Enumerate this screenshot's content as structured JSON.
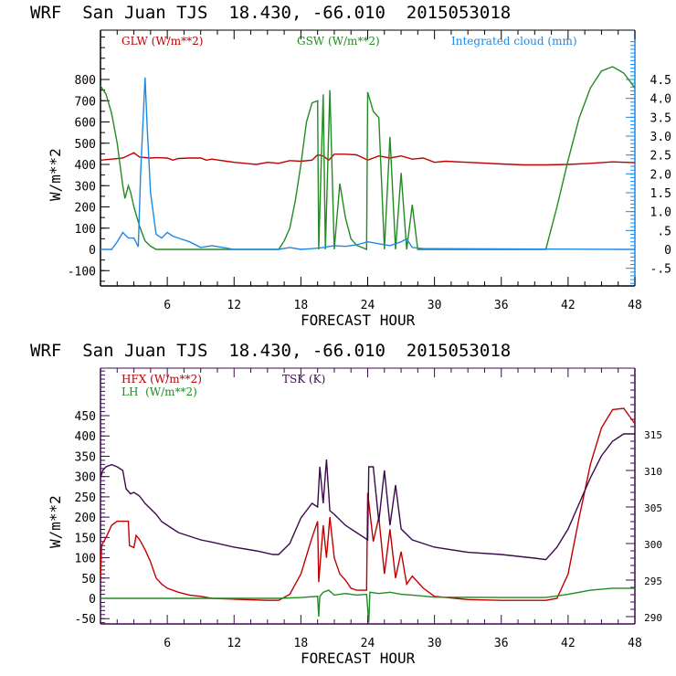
{
  "chart_data": [
    {
      "type": "line",
      "title": "WRF  San Juan TJS  18.430, -66.010  2015053018",
      "xlabel": "FORECAST HOUR",
      "ylabel": "W/m**2",
      "xlim": [
        0,
        48
      ],
      "ylim": [
        -160,
        950
      ],
      "y2lim": [
        -0.9,
        5.3
      ],
      "x_ticks": [
        "6",
        "12",
        "18",
        "24",
        "30",
        "36",
        "42",
        "48"
      ],
      "y_ticks": [
        "-100",
        "0",
        "100",
        "200",
        "300",
        "400",
        "500",
        "600",
        "700",
        "800"
      ],
      "y2_ticks": [
        "-.5",
        "0",
        ".5",
        "1.0",
        "1.5",
        "2.0",
        "2.5",
        "3.0",
        "3.5",
        "4.0",
        "4.5"
      ],
      "grid": false,
      "legend": [
        {
          "label": "GLW (W/m**2)",
          "color": "#c00000",
          "position": "top-left"
        },
        {
          "label": "GSW (W/m**2)",
          "color": "#228b22",
          "position": "top-center"
        },
        {
          "label": "Integrated cloud (mm)",
          "color": "#1e88e5",
          "position": "top-right"
        }
      ],
      "series": [
        {
          "name": "GLW (W/m**2)",
          "axis": "left",
          "color": "#c00000",
          "x": [
            0,
            1,
            2,
            3,
            3.5,
            4.5,
            5,
            6,
            6.5,
            7,
            8,
            9,
            9.5,
            10,
            12,
            13,
            14,
            15,
            16,
            17,
            18,
            19,
            19.5,
            20,
            20.5,
            21,
            22,
            23,
            24,
            25,
            26,
            27,
            28,
            29,
            30,
            31,
            33,
            36,
            38,
            40,
            42,
            44,
            46,
            48
          ],
          "y": [
            420,
            425,
            430,
            455,
            435,
            430,
            432,
            430,
            420,
            428,
            430,
            430,
            420,
            425,
            410,
            405,
            400,
            410,
            405,
            418,
            415,
            420,
            445,
            440,
            420,
            448,
            448,
            445,
            420,
            440,
            430,
            440,
            425,
            430,
            410,
            415,
            410,
            402,
            398,
            398,
            400,
            405,
            412,
            408
          ]
        },
        {
          "name": "GSW (W/m**2)",
          "axis": "left",
          "color": "#228b22",
          "x": [
            0,
            0.5,
            1,
            1.5,
            2,
            2.2,
            2.5,
            2.7,
            3,
            3.5,
            4,
            4.5,
            5,
            5.5,
            6,
            16,
            16.5,
            17,
            17.5,
            18,
            18.5,
            19,
            19.5,
            19.6,
            20,
            20.2,
            20.6,
            21,
            21.5,
            22,
            22.5,
            23,
            23.9,
            24,
            24.5,
            25,
            25.5,
            26,
            26.5,
            27,
            27.5,
            28,
            28.5,
            30,
            40,
            41,
            42,
            43,
            44,
            45,
            46,
            47,
            48
          ],
          "y": [
            770,
            730,
            640,
            500,
            300,
            240,
            300,
            270,
            200,
            110,
            40,
            15,
            0,
            0,
            0,
            0,
            40,
            100,
            230,
            400,
            600,
            690,
            700,
            0,
            730,
            0,
            750,
            0,
            310,
            150,
            50,
            20,
            0,
            740,
            650,
            620,
            0,
            530,
            0,
            360,
            0,
            210,
            0,
            0,
            0,
            200,
            420,
            620,
            760,
            840,
            860,
            830,
            760
          ]
        },
        {
          "name": "Integrated cloud (mm)",
          "axis": "right",
          "color": "#1e88e5",
          "x": [
            0,
            1,
            1.5,
            2,
            2.5,
            3,
            3.4,
            3.6,
            4,
            4.2,
            4.5,
            5,
            5.5,
            6,
            6.5,
            7,
            8,
            9,
            10,
            11,
            12,
            16,
            17,
            18,
            19,
            20,
            21,
            22,
            23,
            24,
            25,
            26,
            27,
            27.5,
            28,
            29,
            30,
            48
          ],
          "y": [
            0,
            0,
            0.2,
            0.45,
            0.3,
            0.3,
            0.07,
            2.0,
            4.55,
            3.2,
            1.5,
            0.4,
            0.3,
            0.45,
            0.35,
            0.3,
            0.2,
            0.05,
            0.1,
            0.05,
            0,
            0,
            0.05,
            0,
            0.02,
            0.05,
            0.1,
            0.08,
            0.12,
            0.2,
            0.15,
            0.1,
            0.2,
            0.28,
            0.05,
            0.02,
            0.02,
            0
          ]
        }
      ]
    },
    {
      "type": "line",
      "title": "WRF  San Juan TJS  18.430, -66.010  2015053018",
      "xlabel": "FORECAST HOUR",
      "ylabel": "W/m**2",
      "xlim": [
        0,
        48
      ],
      "ylim": [
        -60,
        570
      ],
      "y2lim": [
        289.5,
        324.5
      ],
      "x_ticks": [
        "6",
        "12",
        "18",
        "24",
        "30",
        "36",
        "42",
        "48"
      ],
      "y_ticks": [
        "-50",
        "0",
        "50",
        "100",
        "150",
        "200",
        "250",
        "300",
        "350",
        "400",
        "450"
      ],
      "y2_ticks": [
        "290",
        "295",
        "300",
        "305",
        "310",
        "315"
      ],
      "grid": false,
      "legend": [
        {
          "label": "HFX (W/m**2)",
          "color": "#c00000",
          "position": "top-left"
        },
        {
          "label": "LH  (W/m**2)",
          "color": "#228b22",
          "position": "top-left"
        },
        {
          "label": "TSK (K)",
          "color": "#3c0a4b",
          "position": "top-center"
        }
      ],
      "series": [
        {
          "name": "HFX (W/m**2)",
          "axis": "left",
          "color": "#c00000",
          "x": [
            0,
            0.1,
            0.5,
            1,
            1.5,
            2.5,
            2.6,
            3,
            3.2,
            3.5,
            4,
            4.5,
            5,
            5.5,
            6,
            7,
            8,
            9,
            10,
            12,
            15,
            16,
            17,
            18,
            19,
            19.5,
            19.6,
            20,
            20.3,
            20.6,
            21,
            21.5,
            22,
            22.5,
            23,
            23.9,
            24,
            24.5,
            25,
            25.5,
            26,
            26.5,
            27,
            27.5,
            28,
            29,
            30,
            33,
            36,
            39,
            40,
            41,
            42,
            43,
            44,
            45,
            46,
            47,
            48
          ],
          "y": [
            50,
            130,
            150,
            180,
            190,
            190,
            130,
            125,
            155,
            145,
            120,
            90,
            50,
            35,
            25,
            15,
            8,
            5,
            0,
            -2,
            -5,
            -5,
            10,
            60,
            150,
            190,
            40,
            180,
            100,
            200,
            100,
            60,
            45,
            25,
            20,
            20,
            260,
            140,
            200,
            60,
            170,
            50,
            115,
            35,
            55,
            25,
            5,
            -3,
            -5,
            -5,
            -5,
            0,
            60,
            200,
            330,
            420,
            465,
            468,
            430
          ]
        },
        {
          "name": "LH (W/m**2)",
          "axis": "left",
          "color": "#228b22",
          "x": [
            0,
            16,
            18,
            19.5,
            19.6,
            19.7,
            20,
            20.5,
            21,
            22,
            23,
            23.9,
            24.1,
            24.2,
            25,
            26,
            27,
            28,
            30,
            36,
            40,
            42,
            44,
            46,
            48
          ],
          "y": [
            0,
            0,
            2,
            5,
            -45,
            5,
            15,
            20,
            8,
            12,
            8,
            10,
            -60,
            15,
            12,
            15,
            10,
            8,
            3,
            2,
            2,
            10,
            20,
            25,
            25
          ],
          "note": "visible spikes near hours 19.6 and 24.1"
        },
        {
          "name": "TSK (K)",
          "axis": "right",
          "color": "#3c0a4b",
          "x": [
            0,
            0.2,
            0.5,
            1,
            1.5,
            2,
            2.3,
            2.7,
            3,
            3.5,
            4,
            5,
            5.5,
            6,
            7,
            8,
            9,
            10,
            12,
            14,
            15.5,
            16,
            17,
            18,
            19,
            19.5,
            19.7,
            20,
            20.3,
            20.6,
            21,
            22,
            23,
            24,
            24.1,
            24.5,
            25,
            25.5,
            26,
            26.5,
            27,
            28,
            30,
            33,
            36,
            39,
            40,
            41,
            42,
            43,
            44,
            45,
            46,
            47,
            48
          ],
          "y": [
            309,
            310,
            310.5,
            310.8,
            310.5,
            310,
            307.5,
            306.8,
            307,
            306.5,
            305.5,
            304,
            303,
            302.5,
            301.5,
            301,
            300.5,
            300.2,
            299.5,
            299,
            298.5,
            298.5,
            300,
            303.5,
            305.5,
            305,
            310.5,
            305.5,
            311.5,
            304.5,
            304,
            302.5,
            301.5,
            300.5,
            310.5,
            310.5,
            303,
            310,
            302.5,
            308,
            302,
            300.5,
            299.5,
            298.8,
            298.5,
            298,
            297.8,
            299.5,
            302,
            305.5,
            309,
            312,
            314,
            315,
            315
          ]
        }
      ]
    }
  ],
  "charts": [
    {
      "title": "WRF  San Juan TJS  18.430, -66.010  2015053018",
      "ylabel": "W/m**2",
      "xlabel": "FORECAST HOUR",
      "legend_labels": [
        "GLW (W/m**2)",
        "GSW (W/m**2)",
        "Integrated cloud (mm)"
      ]
    },
    {
      "title": "WRF  San Juan TJS  18.430, -66.010  2015053018",
      "ylabel": "W/m**2",
      "xlabel": "FORECAST HOUR",
      "legend_labels": [
        "HFX (W/m**2)",
        "LH  (W/m**2)",
        "TSK (K)"
      ]
    }
  ]
}
